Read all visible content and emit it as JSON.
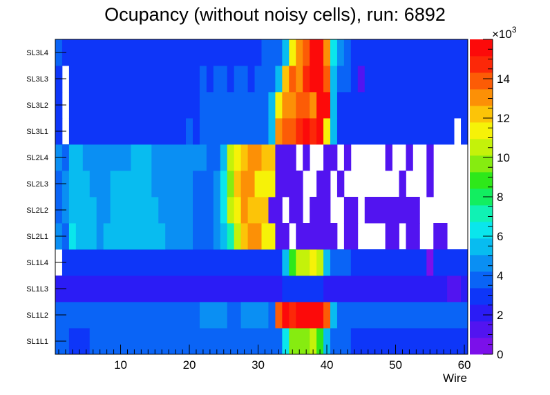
{
  "chart_data": {
    "type": "heatmap",
    "title": "Ocupancy (without noisy cells), run: 6892",
    "xlabel": "Wire",
    "ylabel": "",
    "x_range": [
      0.5,
      60.5
    ],
    "x_ticks": [
      10,
      20,
      30,
      40,
      50,
      60
    ],
    "z_range": [
      0,
      16000
    ],
    "colorbar_multiplier": "×10",
    "colorbar_exponent": "3",
    "colorbar_ticks": [
      {
        "value": 0,
        "label": "0"
      },
      {
        "value": 2000,
        "label": "2"
      },
      {
        "value": 4000,
        "label": "4"
      },
      {
        "value": 6000,
        "label": "6"
      },
      {
        "value": 8000,
        "label": "8"
      },
      {
        "value": 10000,
        "label": "10"
      },
      {
        "value": 12000,
        "label": "12"
      },
      {
        "value": 14000,
        "label": "14"
      }
    ],
    "palette": [
      "#7b10ea",
      "#5214f0",
      "#2b1cf5",
      "#0e36f8",
      "#0a64f6",
      "#0a8ff3",
      "#08bcf0",
      "#0ae6ec",
      "#10f2b4",
      "#12ee60",
      "#2ee81a",
      "#86ec10",
      "#c4f20a",
      "#f6f208",
      "#fcc408",
      "#fc9006",
      "#fc5c06",
      "#fc2808",
      "#fc0a0a"
    ],
    "rows": [
      {
        "label": "SL1L1",
        "segments": [
          [
            1,
            2,
            3600
          ],
          [
            3,
            5,
            2800
          ],
          [
            6,
            33,
            3400
          ],
          [
            34,
            34,
            6400
          ],
          [
            35,
            37,
            9600
          ],
          [
            38,
            38,
            10400
          ],
          [
            39,
            39,
            8600
          ],
          [
            40,
            40,
            5400
          ],
          [
            41,
            43,
            3400
          ],
          [
            44,
            60,
            2600
          ]
        ]
      },
      {
        "label": "SL1L2",
        "segments": [
          [
            1,
            9,
            4200
          ],
          [
            10,
            12,
            3400
          ],
          [
            13,
            21,
            4200
          ],
          [
            22,
            25,
            5000
          ],
          [
            26,
            27,
            4200
          ],
          [
            28,
            31,
            5000
          ],
          [
            32,
            32,
            4200
          ],
          [
            33,
            33,
            13600
          ],
          [
            34,
            34,
            15400
          ],
          [
            35,
            35,
            14600
          ],
          [
            36,
            38,
            16000
          ],
          [
            39,
            39,
            15200
          ],
          [
            40,
            40,
            13800
          ],
          [
            41,
            41,
            5400
          ],
          [
            42,
            48,
            4200
          ],
          [
            49,
            60,
            3400
          ]
        ]
      },
      {
        "label": "SL1L3",
        "segments": [
          [
            1,
            33,
            2200
          ],
          [
            34,
            39,
            2600
          ],
          [
            40,
            57,
            2200
          ],
          [
            58,
            59,
            1400
          ],
          [
            60,
            60,
            2200
          ]
        ]
      },
      {
        "label": "SL1L4",
        "segments": [
          [
            2,
            33,
            3200
          ],
          [
            34,
            34,
            5400
          ],
          [
            35,
            35,
            8800
          ],
          [
            36,
            37,
            10400
          ],
          [
            38,
            38,
            11200
          ],
          [
            39,
            39,
            10200
          ],
          [
            40,
            40,
            5600
          ],
          [
            41,
            43,
            3800
          ],
          [
            44,
            54,
            3000
          ],
          [
            55,
            55,
            0
          ],
          [
            56,
            60,
            2800
          ]
        ]
      },
      {
        "label": "SL2L1",
        "segments": [
          [
            1,
            1,
            4600
          ],
          [
            2,
            2,
            3800
          ],
          [
            3,
            3,
            6200
          ],
          [
            4,
            6,
            5200
          ],
          [
            7,
            7,
            4600
          ],
          [
            8,
            16,
            5200
          ],
          [
            17,
            20,
            4600
          ],
          [
            21,
            23,
            3800
          ],
          [
            24,
            24,
            4600
          ],
          [
            25,
            25,
            5400
          ],
          [
            26,
            26,
            7000
          ],
          [
            27,
            27,
            10400
          ],
          [
            28,
            28,
            12200
          ],
          [
            29,
            30,
            12800
          ],
          [
            31,
            32,
            11400
          ],
          [
            33,
            34,
            1600
          ],
          [
            36,
            41,
            1600
          ],
          [
            43,
            44,
            1600
          ],
          [
            49,
            50,
            1600
          ],
          [
            52,
            53,
            1600
          ],
          [
            56,
            57,
            1600
          ]
        ]
      },
      {
        "label": "SL2L2",
        "segments": [
          [
            1,
            1,
            3800
          ],
          [
            2,
            2,
            4800
          ],
          [
            3,
            6,
            5200
          ],
          [
            7,
            8,
            4600
          ],
          [
            9,
            12,
            5200
          ],
          [
            13,
            15,
            5200
          ],
          [
            16,
            20,
            4600
          ],
          [
            21,
            23,
            3800
          ],
          [
            24,
            24,
            4600
          ],
          [
            25,
            25,
            6200
          ],
          [
            26,
            26,
            10200
          ],
          [
            27,
            27,
            11200
          ],
          [
            28,
            28,
            13000
          ],
          [
            29,
            31,
            12000
          ],
          [
            32,
            33,
            1600
          ],
          [
            35,
            36,
            1600
          ],
          [
            38,
            40,
            1600
          ],
          [
            43,
            44,
            1600
          ],
          [
            46,
            52,
            1600
          ],
          [
            53,
            53,
            1600
          ]
        ]
      },
      {
        "label": "SL2L3",
        "segments": [
          [
            1,
            1,
            3800
          ],
          [
            2,
            2,
            4600
          ],
          [
            3,
            5,
            5200
          ],
          [
            6,
            8,
            4600
          ],
          [
            9,
            14,
            5200
          ],
          [
            15,
            20,
            4600
          ],
          [
            21,
            23,
            3800
          ],
          [
            24,
            24,
            4600
          ],
          [
            25,
            25,
            6200
          ],
          [
            26,
            26,
            9600
          ],
          [
            27,
            27,
            11800
          ],
          [
            28,
            29,
            12800
          ],
          [
            30,
            32,
            11400
          ],
          [
            33,
            36,
            1600
          ],
          [
            39,
            40,
            1600
          ],
          [
            42,
            42,
            1600
          ],
          [
            51,
            51,
            1600
          ],
          [
            55,
            55,
            1600
          ]
        ]
      },
      {
        "label": "SL2L4",
        "segments": [
          [
            1,
            1,
            4600
          ],
          [
            2,
            2,
            3800
          ],
          [
            3,
            4,
            5200
          ],
          [
            5,
            8,
            4600
          ],
          [
            9,
            11,
            4600
          ],
          [
            12,
            14,
            5200
          ],
          [
            15,
            22,
            4600
          ],
          [
            23,
            24,
            3800
          ],
          [
            25,
            25,
            5600
          ],
          [
            26,
            26,
            10200
          ],
          [
            27,
            27,
            11200
          ],
          [
            28,
            28,
            12400
          ],
          [
            29,
            30,
            13000
          ],
          [
            31,
            32,
            12000
          ],
          [
            33,
            35,
            1600
          ],
          [
            37,
            37,
            1600
          ],
          [
            40,
            41,
            1600
          ],
          [
            43,
            43,
            1600
          ],
          [
            49,
            49,
            1600
          ],
          [
            52,
            52,
            1600
          ],
          [
            55,
            55,
            1600
          ]
        ]
      },
      {
        "label": "SL3L1",
        "segments": [
          [
            1,
            1,
            2600
          ],
          [
            3,
            19,
            3000
          ],
          [
            20,
            20,
            3400
          ],
          [
            21,
            21,
            3000
          ],
          [
            22,
            31,
            3400
          ],
          [
            32,
            32,
            5600
          ],
          [
            33,
            33,
            13200
          ],
          [
            34,
            35,
            14200
          ],
          [
            36,
            36,
            15000
          ],
          [
            37,
            37,
            16000
          ],
          [
            38,
            38,
            14600
          ],
          [
            39,
            39,
            15400
          ],
          [
            40,
            40,
            11600
          ],
          [
            41,
            41,
            5200
          ],
          [
            42,
            58,
            3000
          ],
          [
            60,
            60,
            2800
          ]
        ]
      },
      {
        "label": "SL3L2",
        "segments": [
          [
            1,
            1,
            2600
          ],
          [
            3,
            21,
            3000
          ],
          [
            22,
            31,
            3400
          ],
          [
            32,
            32,
            5600
          ],
          [
            33,
            33,
            11600
          ],
          [
            34,
            35,
            13000
          ],
          [
            36,
            37,
            14000
          ],
          [
            38,
            38,
            13000
          ],
          [
            39,
            40,
            15400
          ],
          [
            41,
            41,
            5200
          ],
          [
            42,
            60,
            3000
          ]
        ]
      },
      {
        "label": "SL3L3",
        "segments": [
          [
            1,
            1,
            2600
          ],
          [
            3,
            21,
            3000
          ],
          [
            22,
            22,
            3400
          ],
          [
            23,
            23,
            3000
          ],
          [
            24,
            25,
            3400
          ],
          [
            26,
            26,
            3000
          ],
          [
            27,
            28,
            3400
          ],
          [
            29,
            29,
            3000
          ],
          [
            30,
            32,
            3400
          ],
          [
            33,
            33,
            5600
          ],
          [
            34,
            34,
            12200
          ],
          [
            35,
            35,
            14000
          ],
          [
            36,
            36,
            13000
          ],
          [
            37,
            37,
            14600
          ],
          [
            38,
            39,
            15800
          ],
          [
            40,
            40,
            14000
          ],
          [
            41,
            41,
            5200
          ],
          [
            42,
            42,
            4200
          ],
          [
            43,
            43,
            3400
          ],
          [
            44,
            44,
            3000
          ],
          [
            45,
            45,
            1400
          ],
          [
            46,
            60,
            3000
          ]
        ]
      },
      {
        "label": "SL3L4",
        "segments": [
          [
            1,
            1,
            3400
          ],
          [
            2,
            3,
            2600
          ],
          [
            4,
            30,
            3000
          ],
          [
            31,
            33,
            3400
          ],
          [
            34,
            34,
            5600
          ],
          [
            35,
            35,
            11200
          ],
          [
            36,
            36,
            13200
          ],
          [
            37,
            37,
            14200
          ],
          [
            38,
            39,
            15600
          ],
          [
            40,
            40,
            13000
          ],
          [
            41,
            41,
            6200
          ],
          [
            42,
            42,
            5000
          ],
          [
            43,
            43,
            4000
          ],
          [
            44,
            58,
            3000
          ],
          [
            59,
            60,
            2600
          ]
        ]
      }
    ]
  }
}
